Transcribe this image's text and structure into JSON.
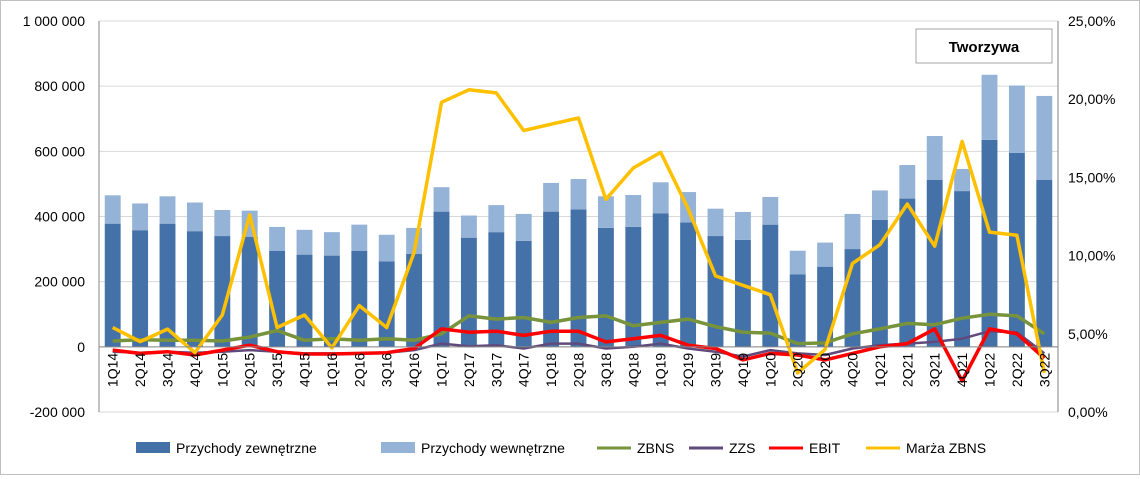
{
  "chart_data": {
    "type": "bar",
    "categories": [
      "1Q14",
      "2Q14",
      "3Q14",
      "4Q14",
      "1Q15",
      "2Q15",
      "3Q15",
      "4Q15",
      "1Q16",
      "2Q16",
      "3Q16",
      "4Q16",
      "1Q17",
      "2Q17",
      "3Q17",
      "4Q17",
      "1Q18",
      "2Q18",
      "3Q18",
      "4Q18",
      "1Q19",
      "2Q19",
      "3Q19",
      "4Q19",
      "1Q20",
      "2Q20",
      "3Q20",
      "4Q20",
      "1Q21",
      "2Q21",
      "3Q21",
      "4Q21",
      "1Q22",
      "2Q22",
      "3Q22"
    ],
    "title": "Tworzywa",
    "xlabel": "",
    "ylabel": "",
    "ylim": [
      -200000,
      1000000
    ],
    "y2lim": [
      0,
      0.25
    ],
    "y_ticks": [
      "-200 000",
      "0",
      "200 000",
      "400 000",
      "600 000",
      "800 000",
      "1 000 000"
    ],
    "y2_ticks": [
      "0,00%",
      "5,00%",
      "10,00%",
      "15,00%",
      "20,00%",
      "25,00%"
    ],
    "grid": true,
    "legend_position": "bottom",
    "series": [
      {
        "name": "Przychody zewnętrzne",
        "type": "bar-stacked",
        "axis": "left",
        "color": "#4472a8",
        "values": [
          378000,
          358000,
          378000,
          355000,
          340000,
          338000,
          295000,
          283000,
          280000,
          295000,
          262000,
          285000,
          415000,
          335000,
          352000,
          325000,
          415000,
          422000,
          365000,
          368000,
          410000,
          382000,
          340000,
          328000,
          375000,
          222000,
          246000,
          300000,
          390000,
          455000,
          512000,
          478000,
          635000,
          595000,
          512000
        ]
      },
      {
        "name": "Przychody wewnętrzne",
        "type": "bar-stacked",
        "axis": "left",
        "color": "#95b3d7",
        "values": [
          87000,
          82000,
          84000,
          88000,
          80000,
          80000,
          73000,
          76000,
          72000,
          80000,
          82000,
          80000,
          75000,
          68000,
          83000,
          83000,
          88000,
          93000,
          97000,
          98000,
          95000,
          93000,
          84000,
          86000,
          85000,
          73000,
          74000,
          108000,
          90000,
          103000,
          135000,
          68000,
          200000,
          207000,
          258000
        ]
      },
      {
        "name": "ZBNS",
        "type": "line",
        "axis": "left",
        "color": "#77933c",
        "values": [
          18000,
          22000,
          20000,
          20000,
          18000,
          30000,
          50000,
          20000,
          25000,
          20000,
          25000,
          20000,
          40000,
          95000,
          85000,
          90000,
          75000,
          90000,
          95000,
          65000,
          75000,
          85000,
          62000,
          45000,
          42000,
          10000,
          12000,
          40000,
          55000,
          72000,
          68000,
          88000,
          100000,
          95000,
          40000
        ]
      },
      {
        "name": "ZZS",
        "type": "line",
        "axis": "left",
        "color": "#604a7b",
        "values": [
          -15000,
          -18000,
          -15000,
          -18000,
          -15000,
          -10000,
          -15000,
          -20000,
          -20000,
          -20000,
          -18000,
          -10000,
          10000,
          2000,
          5000,
          -5000,
          10000,
          10000,
          -5000,
          0,
          10000,
          -5000,
          -15000,
          -30000,
          -10000,
          -20000,
          -25000,
          -5000,
          5000,
          10000,
          15000,
          25000,
          48000,
          45000,
          -20000
        ]
      },
      {
        "name": "EBIT",
        "type": "line",
        "axis": "left",
        "color": "#ff0000",
        "values": [
          -10000,
          -20000,
          -15000,
          -25000,
          -10000,
          5000,
          -15000,
          -22000,
          -22000,
          -20000,
          -18000,
          -5000,
          55000,
          45000,
          48000,
          35000,
          48000,
          48000,
          15000,
          25000,
          35000,
          5000,
          -5000,
          -40000,
          -20000,
          -25000,
          -40000,
          -20000,
          0,
          10000,
          55000,
          -105000,
          55000,
          40000,
          -35000
        ]
      },
      {
        "name": "Marża ZBNS",
        "type": "line",
        "axis": "right",
        "color": "#ffc000",
        "values": [
          0.054,
          0.045,
          0.053,
          0.038,
          0.062,
          0.126,
          0.054,
          0.062,
          0.041,
          0.068,
          0.054,
          0.102,
          0.198,
          0.206,
          0.204,
          0.18,
          0.184,
          0.188,
          0.136,
          0.156,
          0.166,
          0.13,
          0.087,
          0.081,
          0.075,
          0.025,
          0.04,
          0.095,
          0.107,
          0.133,
          0.106,
          0.173,
          0.115,
          0.113,
          0.025
        ]
      }
    ]
  }
}
